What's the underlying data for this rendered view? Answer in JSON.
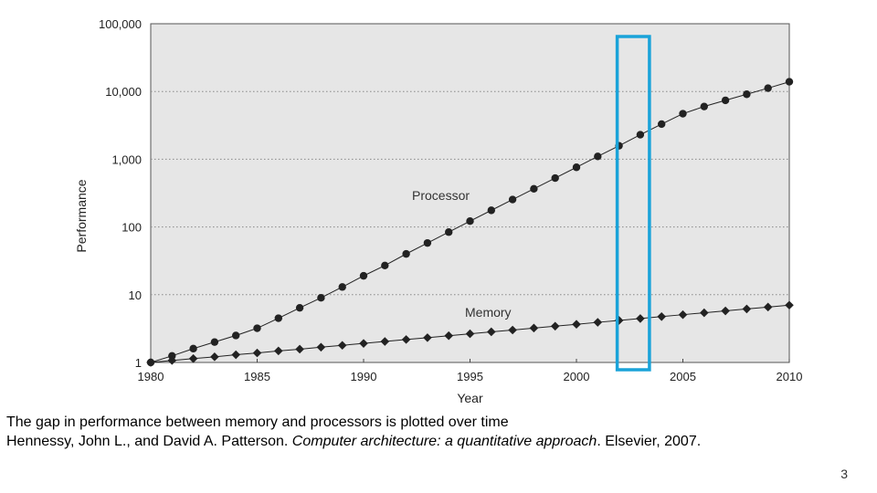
{
  "chart_data": {
    "type": "line",
    "title": "",
    "xlabel": "Year",
    "ylabel": "Performance",
    "yscale": "log",
    "xlim": [
      1980,
      2010
    ],
    "ylim": [
      1,
      100000
    ],
    "x_ticks": [
      "1980",
      "1985",
      "1990",
      "1995",
      "2000",
      "2005",
      "2010"
    ],
    "y_ticks": [
      "1",
      "10",
      "100",
      "1,000",
      "10,000",
      "100,000"
    ],
    "grid": "horizontal dotted",
    "background": "#e6e6e6",
    "series": [
      {
        "name": "Processor",
        "marker": "circle",
        "color": "#222222",
        "x": [
          1980,
          1981,
          1982,
          1983,
          1984,
          1985,
          1986,
          1987,
          1988,
          1989,
          1990,
          1991,
          1992,
          1993,
          1994,
          1995,
          1996,
          1997,
          1998,
          1999,
          2000,
          2001,
          2002,
          2003,
          2004,
          2005,
          2006,
          2007,
          2008,
          2009,
          2010
        ],
        "values": [
          1,
          1.25,
          1.6,
          2,
          2.5,
          3.2,
          4.5,
          6.4,
          9,
          13,
          19,
          27,
          40,
          58,
          84,
          122,
          176,
          254,
          366,
          527,
          760,
          1100,
          1580,
          2300,
          3300,
          4700,
          6000,
          7400,
          9100,
          11200,
          13900
        ]
      },
      {
        "name": "Memory",
        "marker": "diamond",
        "color": "#222222",
        "x": [
          1980,
          1981,
          1982,
          1983,
          1984,
          1985,
          1986,
          1987,
          1988,
          1989,
          1990,
          1991,
          1992,
          1993,
          1994,
          1995,
          1996,
          1997,
          1998,
          1999,
          2000,
          2001,
          2002,
          2003,
          2004,
          2005,
          2006,
          2007,
          2008,
          2009,
          2010
        ],
        "values": [
          1,
          1.07,
          1.14,
          1.21,
          1.3,
          1.38,
          1.48,
          1.57,
          1.68,
          1.79,
          1.91,
          2.04,
          2.18,
          2.32,
          2.48,
          2.65,
          2.83,
          3.01,
          3.22,
          3.43,
          3.66,
          3.91,
          4.17,
          4.45,
          4.75,
          5.07,
          5.41,
          5.77,
          6.16,
          6.57,
          7.01
        ]
      }
    ],
    "highlight": {
      "x_range": [
        2002,
        2003
      ],
      "color": "#1aa3d9"
    }
  },
  "caption": {
    "line1": "The gap in performance between memory and processors is plotted over time",
    "line2_prefix": "Hennessy, John L., and David A. Patterson. ",
    "line2_title": "Computer architecture: a quantitative approach",
    "line2_suffix": ". Elsevier, 2007."
  },
  "page_number": "3"
}
